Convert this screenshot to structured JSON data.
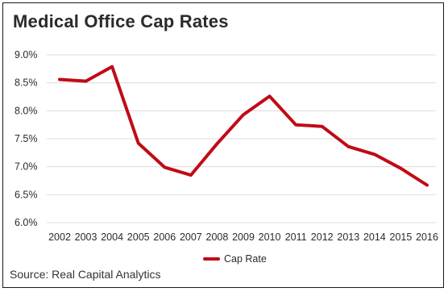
{
  "colors": {
    "series": "#c00b16",
    "grid": "#dcdcdc",
    "text": "#2b2b2b"
  },
  "chart_data": {
    "type": "line",
    "title": "Medical Office Cap Rates",
    "x": [
      "2002",
      "2003",
      "2004",
      "2005",
      "2006",
      "2007",
      "2008",
      "2009",
      "2010",
      "2011",
      "2012",
      "2013",
      "2014",
      "2015",
      "2016"
    ],
    "series": [
      {
        "name": "Cap Rate",
        "values": [
          8.56,
          8.53,
          8.79,
          7.42,
          6.99,
          6.85,
          7.41,
          7.93,
          8.26,
          7.75,
          7.72,
          7.36,
          7.22,
          6.97,
          6.67
        ]
      }
    ],
    "y_ticks": [
      "9.0%",
      "8.5%",
      "8.0%",
      "7.5%",
      "7.0%",
      "6.5%",
      "6.0%"
    ],
    "ylim": [
      6.0,
      9.0
    ],
    "grid": true,
    "legend": "bottom-center"
  },
  "source": "Source: Real Capital Analytics"
}
